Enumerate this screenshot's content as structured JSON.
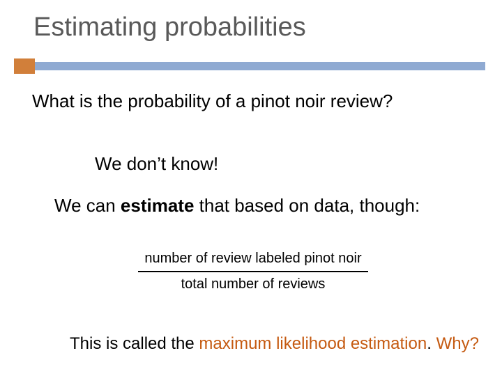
{
  "colors": {
    "title_color": "#595959",
    "accent_orange": "#d17f3a",
    "accent_blue": "#8faad2",
    "text_color": "#000000",
    "highlight_color": "#c55a11"
  },
  "title": "Estimating probabilities",
  "question": "What is the probability of a pinot noir review?",
  "line1": "We don’t know!",
  "line2_pre": "We can ",
  "line2_em": "estimate",
  "line2_post": " that based on data, though:",
  "fraction": {
    "numerator": "number of review labeled pinot noir",
    "denominator": "total number of reviews"
  },
  "line3_pre": "This is called the ",
  "line3_mle": "maximum likelihood estimation",
  "line3_dot": ".  ",
  "line3_why": "Why?"
}
